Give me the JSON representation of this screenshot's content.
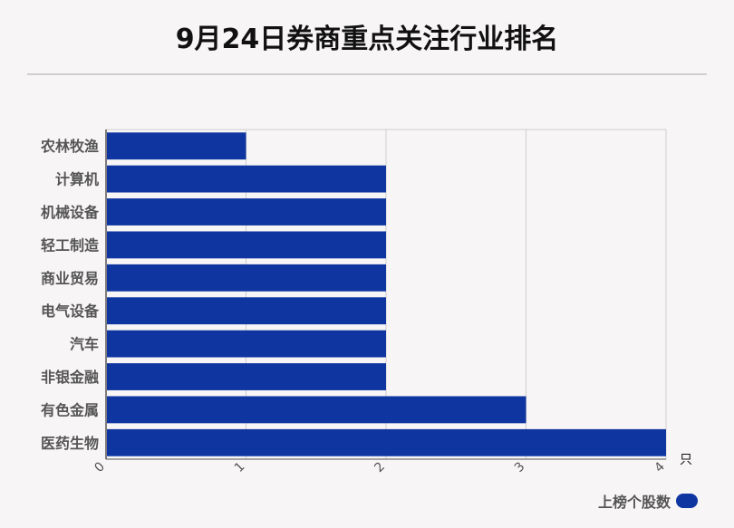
{
  "chart_data": {
    "type": "bar",
    "orientation": "horizontal",
    "title": "9月24日券商重点关注行业排名",
    "categories": [
      "农林牧渔",
      "计算机",
      "机械设备",
      "轻工制造",
      "商业贸易",
      "电气设备",
      "汽车",
      "非银金融",
      "有色金属",
      "医药生物"
    ],
    "series": [
      {
        "name": "上榜个股数",
        "values": [
          1,
          2,
          2,
          2,
          2,
          2,
          2,
          2,
          3,
          4
        ],
        "color": "#0f35a0"
      }
    ],
    "xlim": [
      0,
      4
    ],
    "xticks": [
      "0",
      "1",
      "2",
      "3",
      "4"
    ],
    "xunit": "只",
    "grid": true,
    "legend_position": "bottom-right"
  }
}
